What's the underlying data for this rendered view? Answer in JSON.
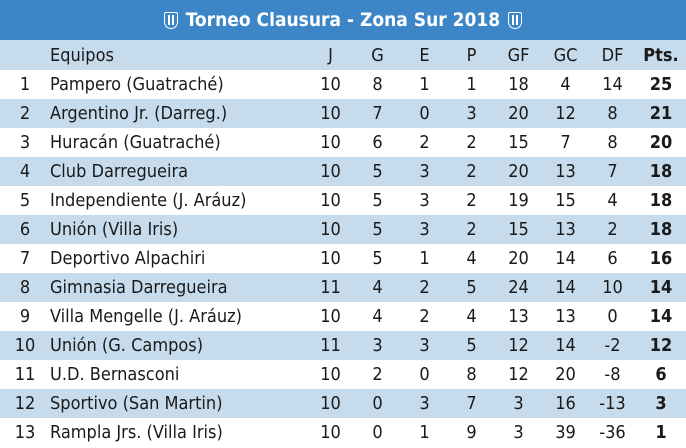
{
  "title": "Torneo Clausura - Zona Sur 2018",
  "headers": [
    "",
    "Equipos",
    "J",
    "G",
    "E",
    "P",
    "GF",
    "GC",
    "DF",
    "Pts."
  ],
  "rows": [
    [
      "1",
      "Pampero (Guatraché)",
      "10",
      "8",
      "1",
      "1",
      "18",
      "4",
      "14",
      "25"
    ],
    [
      "2",
      "Argentino Jr. (Darreg.)",
      "10",
      "7",
      "0",
      "3",
      "20",
      "12",
      "8",
      "21"
    ],
    [
      "3",
      "Huracán (Guatraché)",
      "10",
      "6",
      "2",
      "2",
      "15",
      "7",
      "8",
      "20"
    ],
    [
      "4",
      "Club Darregueira",
      "10",
      "5",
      "3",
      "2",
      "20",
      "13",
      "7",
      "18"
    ],
    [
      "5",
      "Independiente (J. Aráuz)",
      "10",
      "5",
      "3",
      "2",
      "19",
      "15",
      "4",
      "18"
    ],
    [
      "6",
      "Unión (Villa Iris)",
      "10",
      "5",
      "3",
      "2",
      "15",
      "13",
      "2",
      "18"
    ],
    [
      "7",
      "Deportivo Alpachiri",
      "10",
      "5",
      "1",
      "4",
      "20",
      "14",
      "6",
      "16"
    ],
    [
      "8",
      "Gimnasia Darregueira",
      "11",
      "4",
      "2",
      "5",
      "24",
      "14",
      "10",
      "14"
    ],
    [
      "9",
      "Villa Mengelle (J. Aráuz)",
      "10",
      "4",
      "2",
      "4",
      "13",
      "13",
      "0",
      "14"
    ],
    [
      "10",
      "Unión (G. Campos)",
      "11",
      "3",
      "3",
      "5",
      "12",
      "14",
      "-2",
      "12"
    ],
    [
      "11",
      "U.D. Bernasconi",
      "10",
      "2",
      "0",
      "8",
      "12",
      "20",
      "-8",
      "6"
    ],
    [
      "12",
      "Sportivo (San Martin)",
      "10",
      "0",
      "3",
      "7",
      "3",
      "16",
      "-13",
      "3"
    ],
    [
      "13",
      "Rampla Jrs. (Villa Iris)",
      "10",
      "0",
      "1",
      "9",
      "3",
      "39",
      "-36",
      "1"
    ]
  ],
  "colors": {
    "title_bg": "#3c86c7",
    "stripe": "#c6dced"
  },
  "icons": [
    "crest-icon"
  ]
}
